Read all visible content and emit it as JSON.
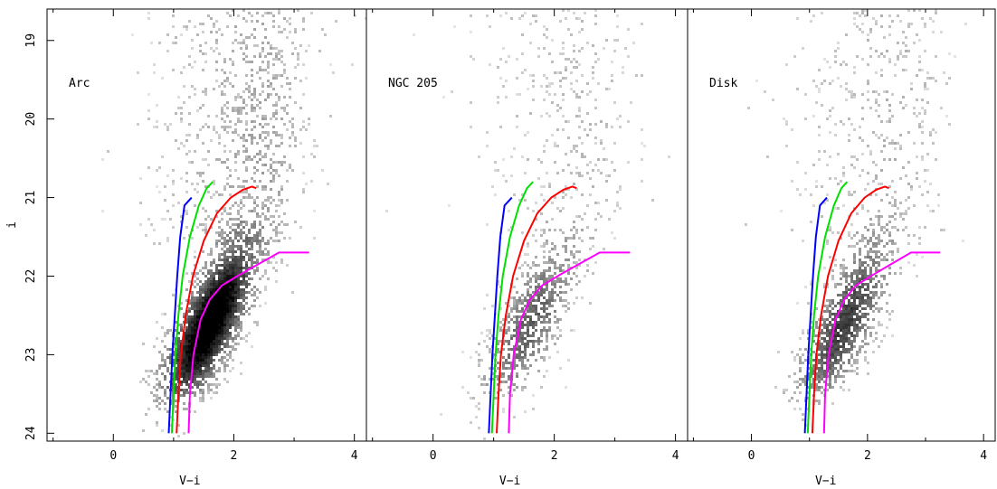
{
  "chart_data": [
    {
      "type": "scatter",
      "panel_label": "Arc",
      "xlabel": "V−i",
      "ylabel": "i",
      "xlim": [
        -1.1,
        4.2
      ],
      "ylim": [
        24.1,
        18.6
      ],
      "x_ticks": [
        "0",
        "2",
        "4"
      ],
      "y_ticks": [
        "19",
        "20",
        "21",
        "22",
        "23",
        "24"
      ],
      "grid": false,
      "points": "density rendering of many thousands of stars (grey Hess diagram)",
      "density_model": {
        "density_scale": 1.0
      },
      "isochrones": [
        {
          "color": "#0000ff",
          "points": [
            [
              0.92,
              24.0
            ],
            [
              0.95,
              23.5
            ],
            [
              0.98,
              23.0
            ],
            [
              1.02,
              22.5
            ],
            [
              1.06,
              22.0
            ],
            [
              1.11,
              21.5
            ],
            [
              1.18,
              21.1
            ],
            [
              1.3,
              21.0
            ]
          ]
        },
        {
          "color": "#00e000",
          "points": [
            [
              0.97,
              24.0
            ],
            [
              1.0,
              23.5
            ],
            [
              1.03,
              23.0
            ],
            [
              1.08,
              22.5
            ],
            [
              1.15,
              22.0
            ],
            [
              1.27,
              21.5
            ],
            [
              1.42,
              21.1
            ],
            [
              1.55,
              20.88
            ],
            [
              1.65,
              20.8
            ]
          ]
        },
        {
          "color": "#ff0000",
          "points": [
            [
              1.05,
              24.0
            ],
            [
              1.08,
              23.5
            ],
            [
              1.12,
              23.0
            ],
            [
              1.2,
              22.5
            ],
            [
              1.32,
              22.0
            ],
            [
              1.5,
              21.55
            ],
            [
              1.72,
              21.2
            ],
            [
              1.95,
              21.0
            ],
            [
              2.15,
              20.9
            ],
            [
              2.3,
              20.86
            ],
            [
              2.37,
              20.88
            ]
          ]
        },
        {
          "color": "#ff00ff",
          "points": [
            [
              1.25,
              24.0
            ],
            [
              1.27,
              23.5
            ],
            [
              1.33,
              23.0
            ],
            [
              1.45,
              22.55
            ],
            [
              1.6,
              22.3
            ],
            [
              1.8,
              22.12
            ],
            [
              2.1,
              21.98
            ],
            [
              2.4,
              21.85
            ],
            [
              2.75,
              21.7
            ],
            [
              3.25,
              21.7
            ]
          ]
        }
      ]
    },
    {
      "type": "scatter",
      "panel_label": "NGC 205",
      "xlabel": "V−i",
      "ylabel": "",
      "xlim": [
        -1.1,
        4.2
      ],
      "ylim": [
        24.1,
        18.6
      ],
      "x_ticks": [
        "0",
        "2",
        "4"
      ],
      "y_ticks": [],
      "grid": false,
      "points": "density rendering of many thousands of stars (grey Hess diagram)",
      "density_model": {
        "density_scale": 0.45
      },
      "isochrones": [
        {
          "color": "#0000ff",
          "points": [
            [
              0.92,
              24.0
            ],
            [
              0.95,
              23.5
            ],
            [
              0.98,
              23.0
            ],
            [
              1.02,
              22.5
            ],
            [
              1.06,
              22.0
            ],
            [
              1.11,
              21.5
            ],
            [
              1.18,
              21.1
            ],
            [
              1.3,
              21.0
            ]
          ]
        },
        {
          "color": "#00e000",
          "points": [
            [
              0.97,
              24.0
            ],
            [
              1.0,
              23.5
            ],
            [
              1.03,
              23.0
            ],
            [
              1.08,
              22.5
            ],
            [
              1.15,
              22.0
            ],
            [
              1.27,
              21.5
            ],
            [
              1.42,
              21.1
            ],
            [
              1.55,
              20.88
            ],
            [
              1.65,
              20.8
            ]
          ]
        },
        {
          "color": "#ff0000",
          "points": [
            [
              1.05,
              24.0
            ],
            [
              1.08,
              23.5
            ],
            [
              1.12,
              23.0
            ],
            [
              1.2,
              22.5
            ],
            [
              1.32,
              22.0
            ],
            [
              1.5,
              21.55
            ],
            [
              1.72,
              21.2
            ],
            [
              1.95,
              21.0
            ],
            [
              2.15,
              20.9
            ],
            [
              2.3,
              20.86
            ],
            [
              2.37,
              20.88
            ]
          ]
        },
        {
          "color": "#ff00ff",
          "points": [
            [
              1.25,
              24.0
            ],
            [
              1.27,
              23.5
            ],
            [
              1.33,
              23.0
            ],
            [
              1.45,
              22.55
            ],
            [
              1.6,
              22.3
            ],
            [
              1.8,
              22.12
            ],
            [
              2.1,
              21.98
            ],
            [
              2.4,
              21.85
            ],
            [
              2.75,
              21.7
            ],
            [
              3.25,
              21.7
            ]
          ]
        }
      ]
    },
    {
      "type": "scatter",
      "panel_label": "Disk",
      "xlabel": "V−i",
      "ylabel": "",
      "xlim": [
        -1.1,
        4.2
      ],
      "ylim": [
        24.1,
        18.6
      ],
      "x_ticks": [
        "0",
        "2",
        "4"
      ],
      "y_ticks": [],
      "grid": false,
      "points": "density rendering of many thousands of stars (grey Hess diagram)",
      "density_model": {
        "density_scale": 0.6
      },
      "isochrones": [
        {
          "color": "#0000ff",
          "points": [
            [
              0.92,
              24.0
            ],
            [
              0.95,
              23.5
            ],
            [
              0.98,
              23.0
            ],
            [
              1.02,
              22.5
            ],
            [
              1.06,
              22.0
            ],
            [
              1.11,
              21.5
            ],
            [
              1.18,
              21.1
            ],
            [
              1.3,
              21.0
            ]
          ]
        },
        {
          "color": "#00e000",
          "points": [
            [
              0.97,
              24.0
            ],
            [
              1.0,
              23.5
            ],
            [
              1.03,
              23.0
            ],
            [
              1.08,
              22.5
            ],
            [
              1.15,
              22.0
            ],
            [
              1.27,
              21.5
            ],
            [
              1.42,
              21.1
            ],
            [
              1.55,
              20.88
            ],
            [
              1.65,
              20.8
            ]
          ]
        },
        {
          "color": "#ff0000",
          "points": [
            [
              1.05,
              24.0
            ],
            [
              1.08,
              23.5
            ],
            [
              1.12,
              23.0
            ],
            [
              1.2,
              22.5
            ],
            [
              1.32,
              22.0
            ],
            [
              1.5,
              21.55
            ],
            [
              1.72,
              21.2
            ],
            [
              1.95,
              21.0
            ],
            [
              2.15,
              20.9
            ],
            [
              2.3,
              20.86
            ],
            [
              2.37,
              20.88
            ]
          ]
        },
        {
          "color": "#ff00ff",
          "points": [
            [
              1.25,
              24.0
            ],
            [
              1.27,
              23.5
            ],
            [
              1.33,
              23.0
            ],
            [
              1.45,
              22.55
            ],
            [
              1.6,
              22.3
            ],
            [
              1.8,
              22.12
            ],
            [
              2.1,
              21.98
            ],
            [
              2.4,
              21.85
            ],
            [
              2.75,
              21.7
            ],
            [
              3.25,
              21.7
            ]
          ]
        }
      ]
    }
  ]
}
